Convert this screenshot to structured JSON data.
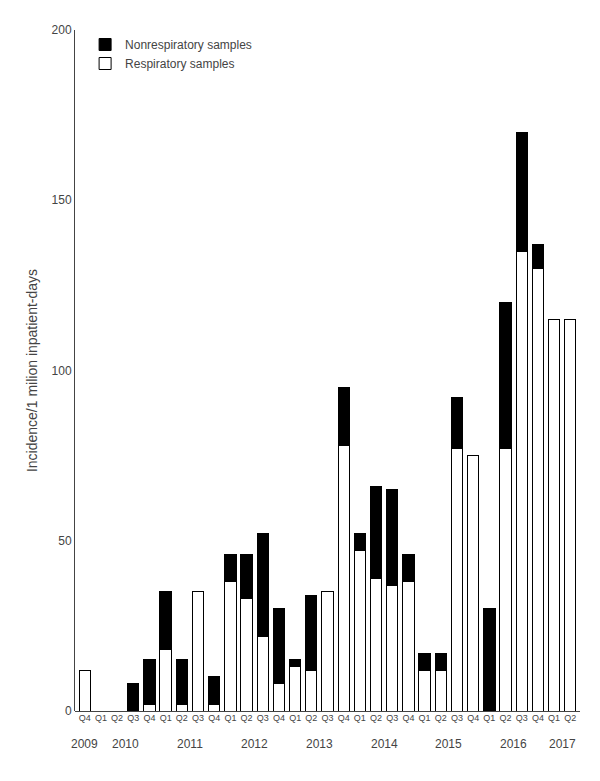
{
  "chart_data": {
    "type": "bar",
    "stacked": true,
    "categories": [
      "Q4",
      "Q1",
      "Q2",
      "Q3",
      "Q4",
      "Q1",
      "Q2",
      "Q3",
      "Q4",
      "Q1",
      "Q2",
      "Q3",
      "Q4",
      "Q1",
      "Q2",
      "Q3",
      "Q4",
      "Q1",
      "Q2",
      "Q3",
      "Q4",
      "Q1",
      "Q2",
      "Q3",
      "Q4",
      "Q1",
      "Q2",
      "Q3",
      "Q4",
      "Q1",
      "Q2"
    ],
    "annotations": [
      "2009",
      "2010",
      "2011",
      "2012",
      "2013",
      "2014",
      "2015",
      "2016",
      "2017"
    ],
    "series": [
      {
        "name": "Respiratory samples",
        "color": "white",
        "values": [
          12,
          0,
          0,
          0,
          2,
          18,
          2,
          35,
          2,
          38,
          33,
          22,
          8,
          13,
          12,
          35,
          78,
          47,
          39,
          37,
          38,
          12,
          12,
          77,
          75,
          0,
          77,
          135,
          130,
          115,
          115
        ]
      },
      {
        "name": "Nonrespiratory samples",
        "color": "black",
        "values": [
          0,
          0,
          0,
          8,
          13,
          17,
          13,
          0,
          8,
          8,
          13,
          30,
          22,
          2,
          22,
          0,
          17,
          5,
          27,
          28,
          8,
          5,
          5,
          15,
          0,
          30,
          43,
          35,
          7,
          0,
          0
        ]
      }
    ],
    "ylabel": "Incidence/1 milion inpatient-days",
    "ylim": [
      0,
      200
    ],
    "yticks": [
      0,
      50,
      100,
      150,
      200
    ],
    "legend": "upper left",
    "grid": false
  }
}
